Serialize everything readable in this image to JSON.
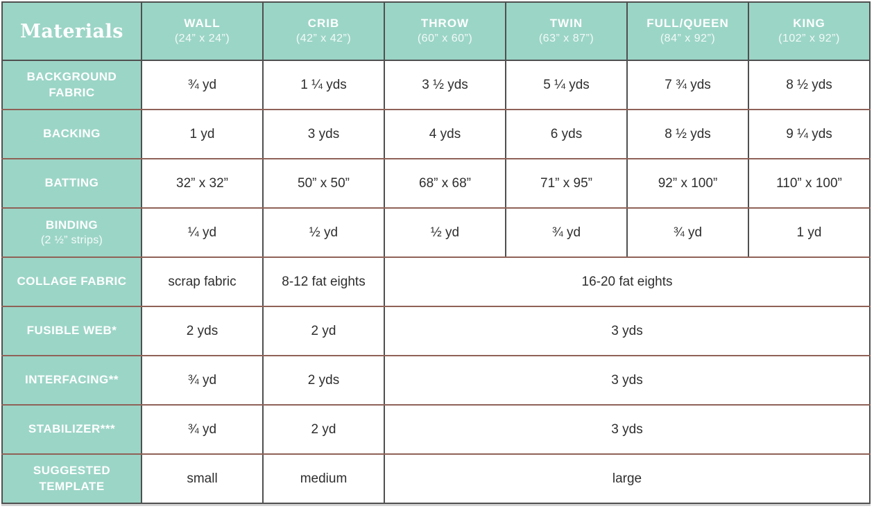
{
  "colors": {
    "header_teal": "#9bd5c6",
    "horizontal_rule_brown": "#8f6157",
    "grid_dark_gray": "#4f4f4f",
    "cell_text": "#2e2e2e",
    "header_text": "#ffffff"
  },
  "table": {
    "corner_label": "Materials",
    "columns": [
      {
        "name": "WALL",
        "size": "(24” x 24”)"
      },
      {
        "name": "CRIB",
        "size": "(42” x 42”)"
      },
      {
        "name": "THROW",
        "size": "(60” x 60”)"
      },
      {
        "name": "TWIN",
        "size": "(63” x 87”)"
      },
      {
        "name": "FULL/QUEEN",
        "size": "(84” x 92”)"
      },
      {
        "name": "KING",
        "size": "(102” x 92”)"
      }
    ],
    "rows": [
      {
        "label": "BACKGROUND FABRIC",
        "cells": [
          {
            "text": "¾ yd",
            "span": 1
          },
          {
            "text": "1 ¼ yds",
            "span": 1
          },
          {
            "text": "3 ½ yds",
            "span": 1
          },
          {
            "text": "5 ¼ yds",
            "span": 1
          },
          {
            "text": "7 ¾ yds",
            "span": 1
          },
          {
            "text": "8 ½ yds",
            "span": 1
          }
        ]
      },
      {
        "label": "BACKING",
        "cells": [
          {
            "text": "1 yd",
            "span": 1
          },
          {
            "text": "3 yds",
            "span": 1
          },
          {
            "text": "4 yds",
            "span": 1
          },
          {
            "text": "6 yds",
            "span": 1
          },
          {
            "text": "8 ½ yds",
            "span": 1
          },
          {
            "text": "9 ¼ yds",
            "span": 1
          }
        ]
      },
      {
        "label": "BATTING",
        "cells": [
          {
            "text": "32” x 32”",
            "span": 1
          },
          {
            "text": "50” x 50”",
            "span": 1
          },
          {
            "text": "68” x 68”",
            "span": 1
          },
          {
            "text": "71” x 95”",
            "span": 1
          },
          {
            "text": "92” x 100”",
            "span": 1
          },
          {
            "text": "110” x 100”",
            "span": 1
          }
        ]
      },
      {
        "label": "BINDING",
        "sublabel": "(2 ½” strips)",
        "cells": [
          {
            "text": "¼ yd",
            "span": 1
          },
          {
            "text": "½ yd",
            "span": 1
          },
          {
            "text": "½ yd",
            "span": 1
          },
          {
            "text": "¾ yd",
            "span": 1
          },
          {
            "text": "¾ yd",
            "span": 1
          },
          {
            "text": "1 yd",
            "span": 1
          }
        ]
      },
      {
        "label": "COLLAGE FABRIC",
        "cells": [
          {
            "text": "scrap fabric",
            "span": 1
          },
          {
            "text": "8-12 fat eights",
            "span": 1
          },
          {
            "text": "16-20 fat eights",
            "span": 4
          }
        ]
      },
      {
        "label": "FUSIBLE WEB*",
        "cells": [
          {
            "text": "2 yds",
            "span": 1
          },
          {
            "text": "2 yd",
            "span": 1
          },
          {
            "text": "3 yds",
            "span": 4
          }
        ]
      },
      {
        "label": "INTERFACING**",
        "cells": [
          {
            "text": "¾ yd",
            "span": 1
          },
          {
            "text": "2 yds",
            "span": 1
          },
          {
            "text": "3 yds",
            "span": 4
          }
        ]
      },
      {
        "label": "STABILIZER***",
        "cells": [
          {
            "text": "¾ yd",
            "span": 1
          },
          {
            "text": "2 yd",
            "span": 1
          },
          {
            "text": "3 yds",
            "span": 4
          }
        ]
      },
      {
        "label": "SUGGESTED TEMPLATE",
        "cells": [
          {
            "text": "small",
            "span": 1
          },
          {
            "text": "medium",
            "span": 1
          },
          {
            "text": "large",
            "span": 4
          }
        ]
      }
    ]
  }
}
